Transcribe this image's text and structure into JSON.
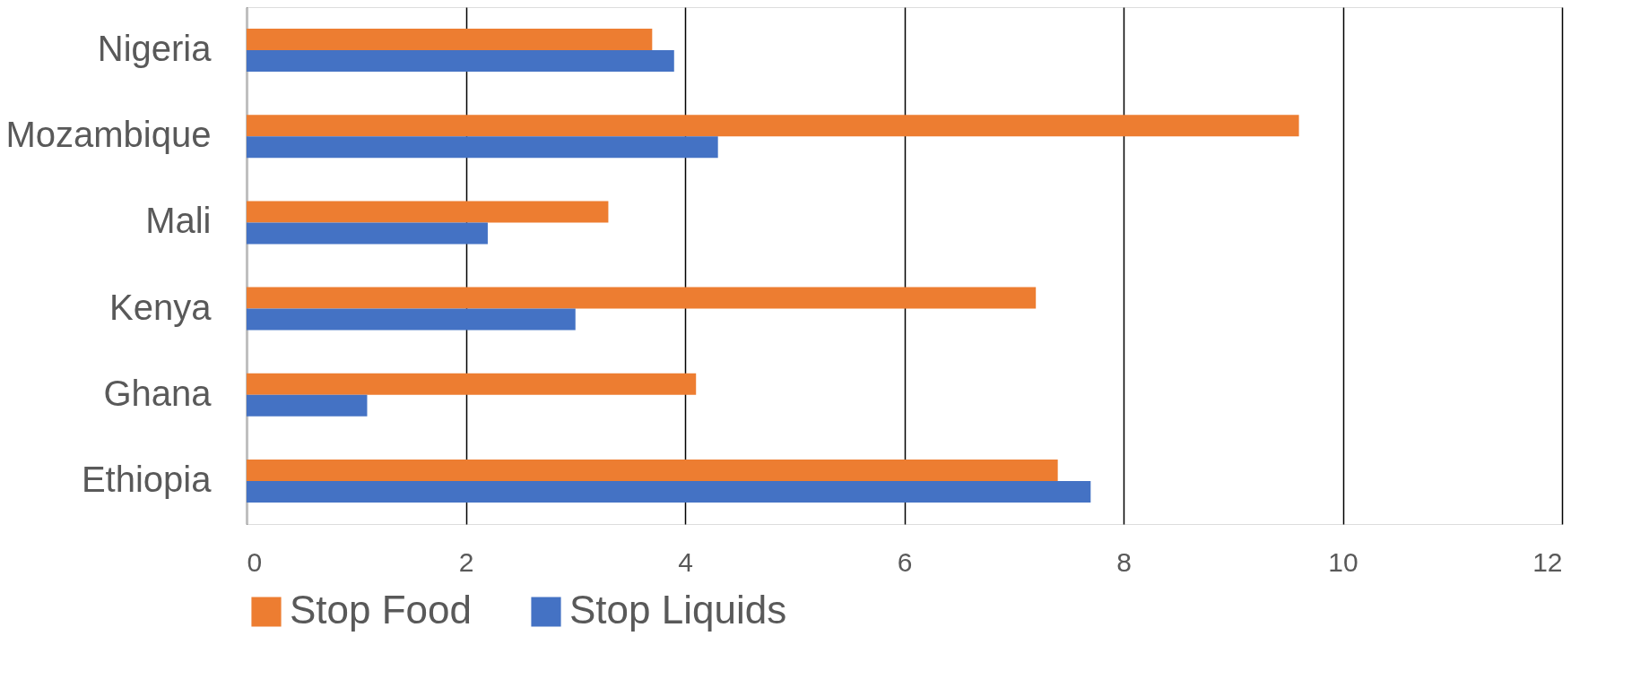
{
  "chart_data": {
    "type": "bar",
    "orientation": "horizontal",
    "categories": [
      "Nigeria",
      "Mozambique",
      "Mali",
      "Kenya",
      "Ghana",
      "Ethiopia"
    ],
    "series": [
      {
        "name": "Stop Food",
        "color": "#ed7d31",
        "values": [
          3.7,
          9.6,
          3.3,
          7.2,
          4.1,
          7.4
        ]
      },
      {
        "name": "Stop Liquids",
        "color": "#4472c4",
        "values": [
          3.9,
          4.3,
          2.2,
          3.0,
          1.1,
          7.7
        ]
      }
    ],
    "xlim": [
      0,
      12
    ],
    "xticks": [
      0,
      2,
      4,
      6,
      8,
      10,
      12
    ],
    "grid": "x",
    "legend": "bottom"
  }
}
